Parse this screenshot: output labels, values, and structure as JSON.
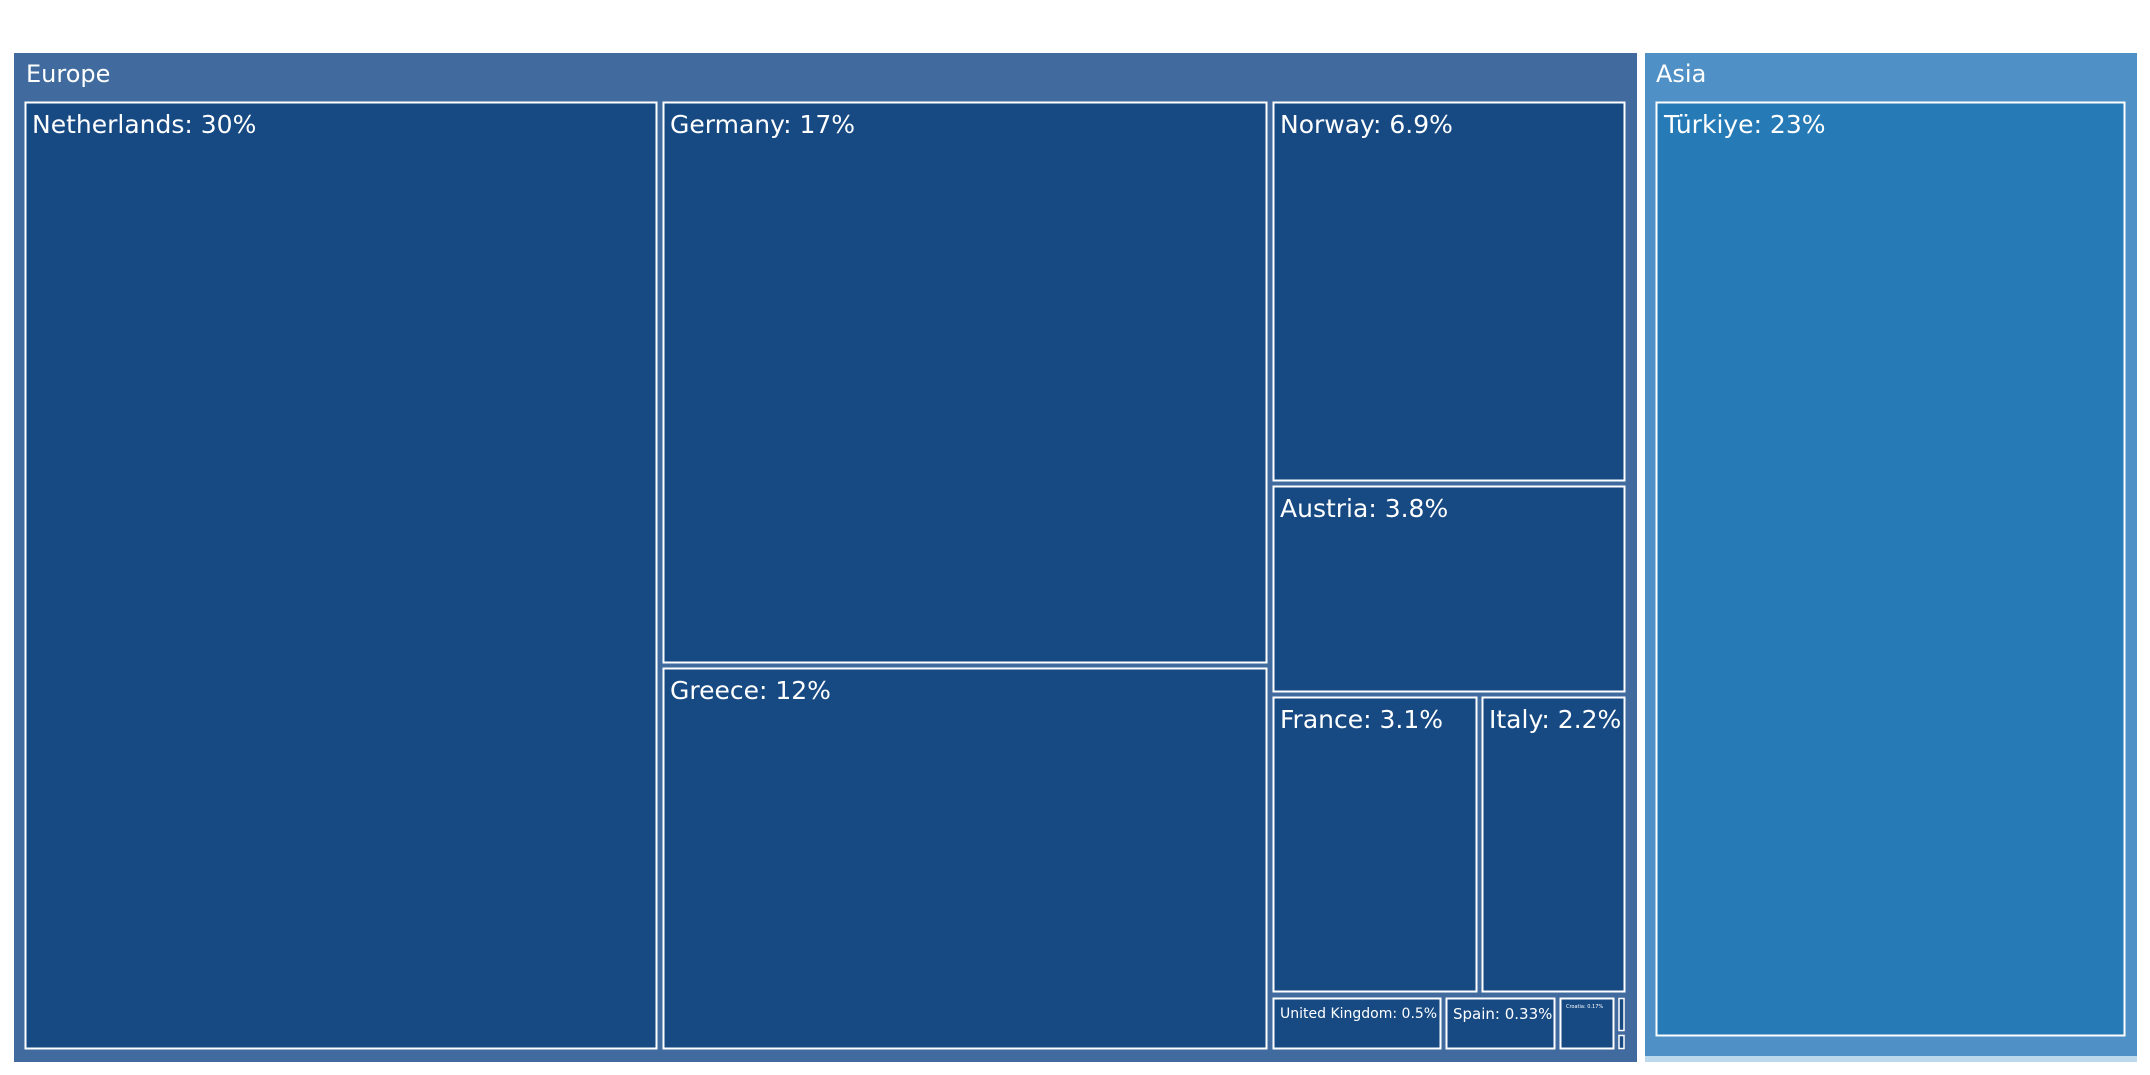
{
  "chart_data": {
    "type": "treemap",
    "title": "",
    "regions": [
      {
        "name": "Europe",
        "color": "#416b9e",
        "leaf_color": "#174a83",
        "items": [
          {
            "name": "Netherlands",
            "label": "Netherlands: 30%",
            "value": 30
          },
          {
            "name": "Germany",
            "label": "Germany: 17%",
            "value": 17
          },
          {
            "name": "Greece",
            "label": "Greece: 12%",
            "value": 12
          },
          {
            "name": "Norway",
            "label": "Norway: 6.9%",
            "value": 6.9
          },
          {
            "name": "Austria",
            "label": "Austria: 3.8%",
            "value": 3.8
          },
          {
            "name": "France",
            "label": "France: 3.1%",
            "value": 3.1
          },
          {
            "name": "Italy",
            "label": "Italy: 2.2%",
            "value": 2.2
          },
          {
            "name": "United Kingdom",
            "label": "United Kingdom: 0.5%",
            "value": 0.5
          },
          {
            "name": "Spain",
            "label": "Spain: 0.33%",
            "value": 0.33
          },
          {
            "name": "Croatia",
            "label": "Croatia: 0.17%",
            "value": 0.17
          }
        ]
      },
      {
        "name": "Asia",
        "color": "#4f91c6",
        "leaf_color": "#267ab6",
        "items": [
          {
            "name": "Türkiye",
            "label": "Türkiye: 23%",
            "value": 23
          }
        ]
      }
    ]
  }
}
